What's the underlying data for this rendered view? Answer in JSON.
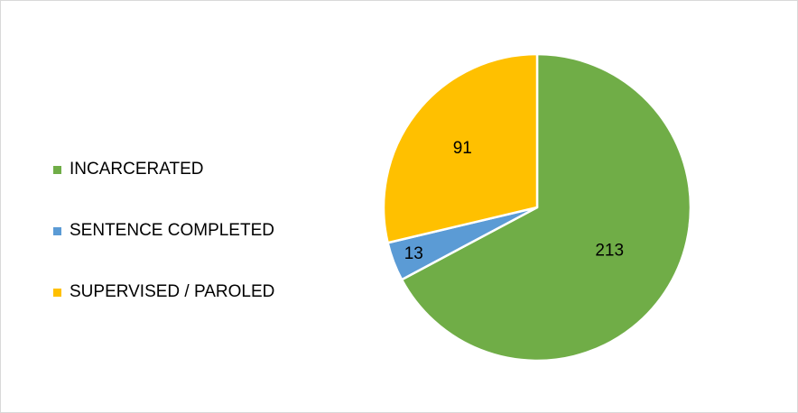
{
  "chart_data": {
    "type": "pie",
    "title": "",
    "categories": [
      "INCARCERATED",
      "SENTENCE COMPLETED",
      "SUPERVISED / PAROLED"
    ],
    "values": [
      213,
      13,
      91
    ],
    "data_labels": [
      "213",
      "13",
      "91"
    ],
    "colors": [
      "#70ad47",
      "#5b9bd5",
      "#ffc000"
    ],
    "start_angle_deg": 0,
    "direction": "clockwise",
    "legend_position": "left",
    "slice_border_color": "#ffffff"
  },
  "legend": {
    "items": [
      {
        "label": "INCARCERATED",
        "color": "#70ad47"
      },
      {
        "label": "SENTENCE COMPLETED",
        "color": "#5b9bd5"
      },
      {
        "label": "SUPERVISED / PAROLED",
        "color": "#ffc000"
      }
    ]
  }
}
